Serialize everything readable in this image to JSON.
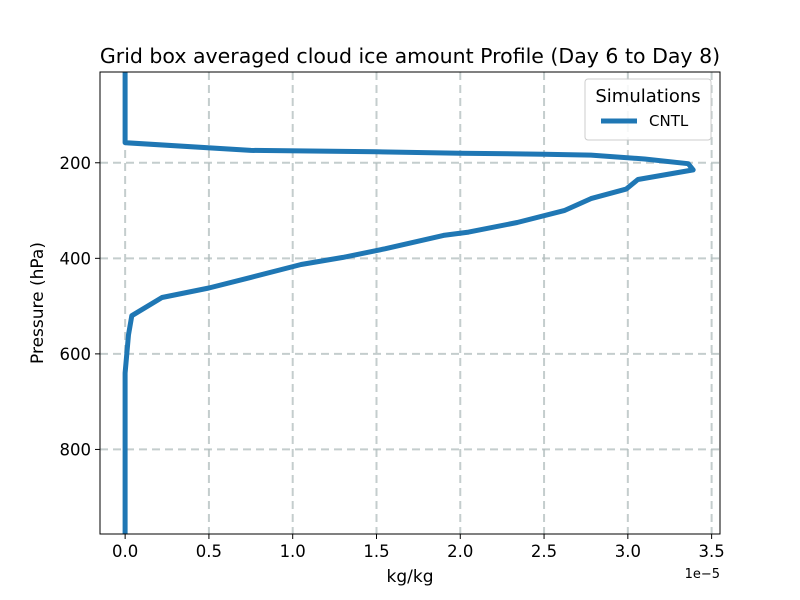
{
  "chart_data": {
    "type": "line",
    "title": "Grid box averaged cloud ice amount Profile (Day 6 to Day 8)",
    "xlabel": "kg/kg",
    "ylabel": "Pressure (hPa)",
    "x_offset_text": "1e−5",
    "xlim": [
      -0.15,
      3.55
    ],
    "ylim": [
      977,
      10
    ],
    "y_inverted": true,
    "grid": true,
    "x_ticks": [
      0.0,
      0.5,
      1.0,
      1.5,
      2.0,
      2.5,
      3.0,
      3.5
    ],
    "x_tick_labels": [
      "0.0",
      "0.5",
      "1.0",
      "1.5",
      "2.0",
      "2.5",
      "3.0",
      "3.5"
    ],
    "y_ticks": [
      200,
      400,
      600,
      800
    ],
    "y_tick_labels": [
      "200",
      "400",
      "600",
      "800"
    ],
    "legend": {
      "title": "Simulations",
      "position": "top-right"
    },
    "series": [
      {
        "name": "CNTL",
        "color": "#1f77b4",
        "x": [
          0.0,
          0.0,
          0.0,
          0.75,
          1.5,
          2.0,
          2.5,
          2.78,
          3.1,
          3.36,
          3.39,
          3.06,
          2.99,
          2.78,
          2.62,
          2.34,
          2.05,
          1.9,
          1.55,
          1.3,
          1.05,
          0.75,
          0.5,
          0.22,
          0.04,
          0.02,
          0.01,
          0.0,
          0.0,
          0.0
        ],
        "y": [
          10,
          100,
          158,
          174,
          177,
          180,
          182,
          184,
          192,
          202,
          215,
          235,
          255,
          275,
          300,
          325,
          345,
          352,
          380,
          398,
          413,
          440,
          462,
          482,
          520,
          560,
          600,
          640,
          800,
          977
        ]
      }
    ]
  }
}
